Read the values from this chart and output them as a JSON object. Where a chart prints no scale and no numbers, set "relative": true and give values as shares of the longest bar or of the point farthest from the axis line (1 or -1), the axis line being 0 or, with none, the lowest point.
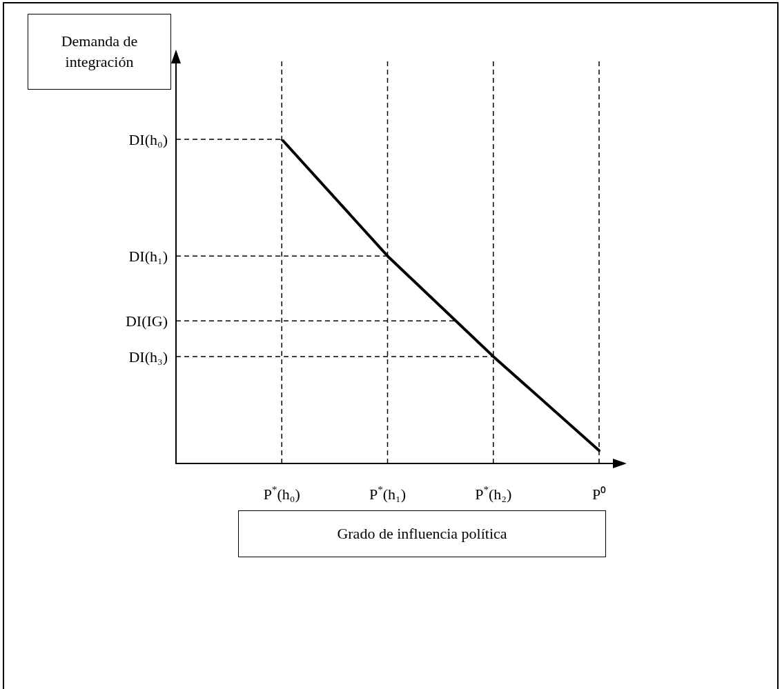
{
  "chart_data": {
    "type": "line",
    "relative": true,
    "annotations": [
      "Demanda de integración"
    ],
    "xlabel": "Grado de influencia política",
    "categories": [
      null,
      "P$^{*}$(h₀)",
      "P$^{*}$(h₁)",
      "P$^{*}$(h₂)",
      "P⁰"
    ],
    "series": [
      {
        "color": "#000000",
        "values": [
          null,
          1,
          0.64,
          0.33,
          0.04
        ]
      }
    ],
    "marker": "none",
    "line_style": "solid",
    "grid": "x",
    "legend": false,
    "ref_lines": [
      {
        "axis": "y",
        "value": 1,
        "label": "DI(h₀)",
        "line_style": "dashed"
      },
      {
        "axis": "y",
        "value": 0.64,
        "label": "DI(h₁)",
        "line_style": "dashed"
      },
      {
        "axis": "y",
        "value": 0.44,
        "label": "DI(IG)",
        "line_style": "dashed"
      },
      {
        "axis": "y",
        "value": 0.33,
        "label": "DI(h₃)",
        "line_style": "dashed"
      }
    ]
  }
}
